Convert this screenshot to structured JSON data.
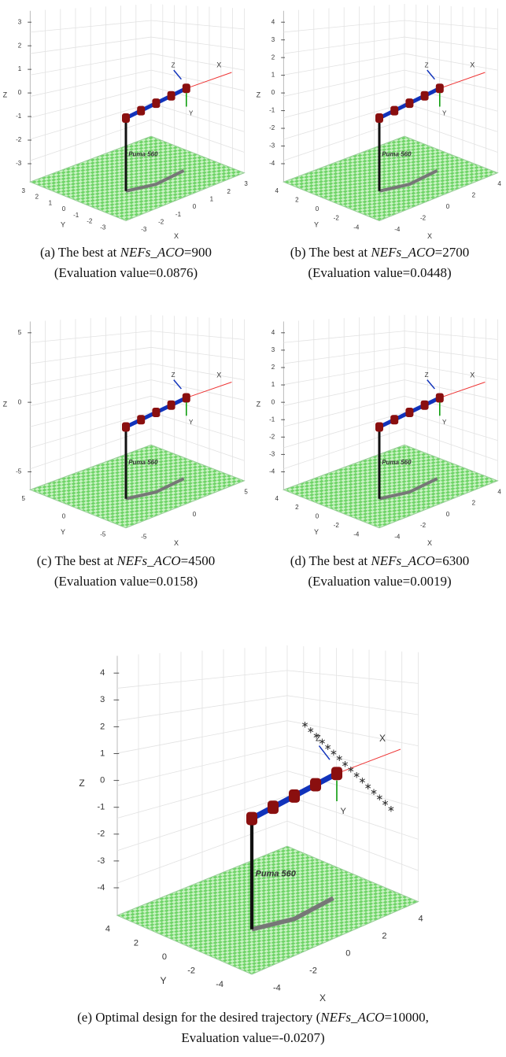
{
  "panels": [
    {
      "ticks": {
        "z": [
          "3",
          "2",
          "1",
          "0",
          "-1",
          "-2",
          "-3"
        ],
        "y": [
          "3",
          "2",
          "1",
          "0",
          "-1",
          "-2",
          "-3"
        ],
        "x": [
          "-3",
          "-2",
          "-1",
          "0",
          "1",
          "2",
          "3"
        ]
      },
      "axis_labels": {
        "x": "X",
        "y": "Y",
        "z": "Z"
      },
      "robot_label": "Puma 560",
      "frame_labels": {
        "z": "Z",
        "y": "Y",
        "x": "X"
      },
      "caption": {
        "prefix": "(a) The best at ",
        "variable": "NEFs_ACO",
        "suffix": "=900",
        "line2": "(Evaluation value=0.0876)"
      }
    },
    {
      "ticks": {
        "z": [
          "4",
          "3",
          "2",
          "1",
          "0",
          "-1",
          "-2",
          "-3",
          "-4"
        ],
        "y": [
          "4",
          "2",
          "0",
          "-2",
          "-4"
        ],
        "x": [
          "-4",
          "-2",
          "0",
          "2",
          "4"
        ]
      },
      "axis_labels": {
        "x": "X",
        "y": "Y",
        "z": "Z"
      },
      "robot_label": "Puma 560",
      "frame_labels": {
        "z": "Z",
        "y": "Y",
        "x": "X"
      },
      "caption": {
        "prefix": "(b) The best at ",
        "variable": "NEFs_ACO",
        "suffix": "=2700",
        "line2": "(Evaluation value=0.0448)"
      }
    },
    {
      "ticks": {
        "z": [
          "5",
          "0",
          "-5"
        ],
        "y": [
          "5",
          "0",
          "-5"
        ],
        "x": [
          "-5",
          "0",
          "5"
        ]
      },
      "axis_labels": {
        "x": "X",
        "y": "Y",
        "z": "Z"
      },
      "robot_label": "Puma 560",
      "frame_labels": {
        "z": "Z",
        "y": "Y",
        "x": "X"
      },
      "caption": {
        "prefix": "(c) The best at ",
        "variable": "NEFs_ACO",
        "suffix": "=4500",
        "line2": "(Evaluation value=0.0158)"
      }
    },
    {
      "ticks": {
        "z": [
          "4",
          "3",
          "2",
          "1",
          "0",
          "-1",
          "-2",
          "-3",
          "-4"
        ],
        "y": [
          "4",
          "2",
          "0",
          "-2",
          "-4"
        ],
        "x": [
          "-4",
          "-2",
          "0",
          "2",
          "4"
        ]
      },
      "axis_labels": {
        "x": "X",
        "y": "Y",
        "z": "Z"
      },
      "robot_label": "Puma 560",
      "frame_labels": {
        "z": "Z",
        "y": "Y",
        "x": "X"
      },
      "caption": {
        "prefix": "(d) The best at ",
        "variable": "NEFs_ACO",
        "suffix": "=6300",
        "line2": "(Evaluation value=0.0019)"
      }
    },
    {
      "ticks": {
        "z": [
          "4",
          "3",
          "2",
          "1",
          "0",
          "-1",
          "-2",
          "-3",
          "-4"
        ],
        "y": [
          "4",
          "2",
          "0",
          "-2",
          "-4"
        ],
        "x": [
          "-4",
          "-2",
          "0",
          "2",
          "4"
        ]
      },
      "axis_labels": {
        "x": "X",
        "y": "Y",
        "z": "Z"
      },
      "robot_label": "Puma 560",
      "frame_labels": {
        "z": "Z",
        "y": "Y",
        "x": "X"
      },
      "caption": {
        "prefix": "(e) Optimal design for the desired trajectory (",
        "variable": "NEFs_ACO",
        "suffix": "=10000,",
        "line2": "Evaluation value=-0.0207)"
      }
    }
  ]
}
